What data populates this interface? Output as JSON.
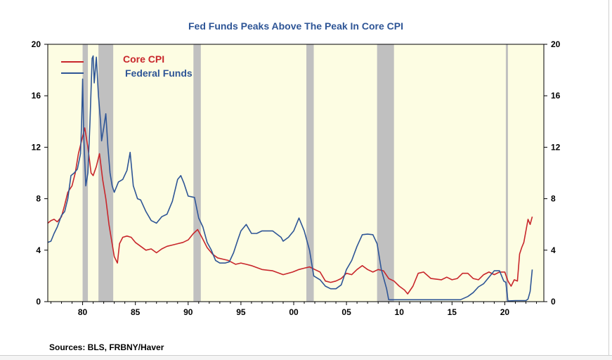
{
  "chart_data": {
    "type": "line",
    "title": "Fed Funds Peaks Above The Peak In Core CPI",
    "x_ticks": [
      "80",
      "85",
      "90",
      "95",
      "00",
      "05",
      "10",
      "15",
      "20"
    ],
    "y_ticks": [
      "0",
      "4",
      "8",
      "12",
      "16",
      "20"
    ],
    "ylim": [
      0,
      20
    ],
    "xlim": [
      1976.7,
      2023.7
    ],
    "grid": false,
    "legend_position": "top-left",
    "background_color": "#fdfde3",
    "recession_shading_color": "#c0c0c0",
    "recessions": [
      [
        1980.0,
        1980.5
      ],
      [
        1981.5,
        1982.9
      ],
      [
        1990.5,
        1991.2
      ],
      [
        2001.2,
        2001.9
      ],
      [
        2007.9,
        2009.5
      ],
      [
        2020.1,
        2020.3
      ]
    ],
    "series": [
      {
        "name": "Core CPI",
        "color": "#c8262b",
        "x": [
          1976.7,
          1977.0,
          1977.3,
          1977.6,
          1978.0,
          1978.3,
          1978.6,
          1979.0,
          1979.3,
          1979.6,
          1979.9,
          1980.2,
          1980.5,
          1980.8,
          1981.0,
          1981.3,
          1981.6,
          1981.9,
          1982.2,
          1982.5,
          1982.8,
          1983.0,
          1983.3,
          1983.5,
          1983.8,
          1984.2,
          1984.6,
          1985.0,
          1985.5,
          1986.0,
          1986.5,
          1987.0,
          1987.5,
          1988.0,
          1988.5,
          1989.0,
          1989.5,
          1990.0,
          1990.5,
          1990.9,
          1991.3,
          1991.8,
          1992.3,
          1992.8,
          1993.3,
          1993.8,
          1994.5,
          1995.0,
          1995.5,
          1996.0,
          1997.0,
          1998.0,
          1999.0,
          1999.9,
          2000.5,
          2001.0,
          2001.5,
          2002.0,
          2002.5,
          2003.0,
          2003.5,
          2004.0,
          2004.5,
          2005.0,
          2005.5,
          2006.0,
          2006.5,
          2007.0,
          2007.5,
          2008.0,
          2008.5,
          2009.0,
          2009.5,
          2010.0,
          2010.5,
          2010.8,
          2011.3,
          2011.8,
          2012.3,
          2013.0,
          2014.0,
          2014.5,
          2015.0,
          2015.5,
          2016.0,
          2016.5,
          2017.0,
          2017.5,
          2018.0,
          2018.5,
          2019.0,
          2019.5,
          2020.0,
          2020.3,
          2020.6,
          2020.9,
          2021.2,
          2021.4,
          2021.6,
          2021.8,
          2022.0,
          2022.2,
          2022.4,
          2022.6
        ],
        "values": [
          6.1,
          6.3,
          6.4,
          6.2,
          6.6,
          7.5,
          8.5,
          9.0,
          10.0,
          11.5,
          12.5,
          13.5,
          12.0,
          10.0,
          9.8,
          10.5,
          11.5,
          9.5,
          8.0,
          6.0,
          4.5,
          3.5,
          3.0,
          4.5,
          5.0,
          5.1,
          5.0,
          4.6,
          4.3,
          4.0,
          4.1,
          3.8,
          4.1,
          4.3,
          4.4,
          4.5,
          4.6,
          4.8,
          5.3,
          5.6,
          5.0,
          4.2,
          3.7,
          3.4,
          3.3,
          3.2,
          2.9,
          3.0,
          2.9,
          2.8,
          2.5,
          2.4,
          2.1,
          2.3,
          2.5,
          2.6,
          2.7,
          2.5,
          2.3,
          1.6,
          1.5,
          1.6,
          1.8,
          2.2,
          2.1,
          2.5,
          2.8,
          2.5,
          2.3,
          2.5,
          2.4,
          1.8,
          1.6,
          1.2,
          0.9,
          0.6,
          1.2,
          2.2,
          2.3,
          1.8,
          1.7,
          1.9,
          1.7,
          1.8,
          2.2,
          2.2,
          1.8,
          1.7,
          2.1,
          2.3,
          2.1,
          2.3,
          2.3,
          1.6,
          1.2,
          1.7,
          1.6,
          3.7,
          4.2,
          4.6,
          5.5,
          6.4,
          6.0,
          6.6
        ]
      },
      {
        "name": "Federal Funds",
        "color": "#2e5596",
        "x": [
          1976.7,
          1977.0,
          1977.3,
          1977.6,
          1978.0,
          1978.3,
          1978.6,
          1978.9,
          1979.2,
          1979.5,
          1979.8,
          1979.9,
          1980.0,
          1980.1,
          1980.3,
          1980.5,
          1980.7,
          1980.9,
          1981.0,
          1981.1,
          1981.3,
          1981.5,
          1981.7,
          1981.8,
          1982.0,
          1982.2,
          1982.4,
          1982.6,
          1982.8,
          1983.0,
          1983.4,
          1983.8,
          1984.2,
          1984.5,
          1984.8,
          1985.2,
          1985.5,
          1986.0,
          1986.5,
          1987.0,
          1987.5,
          1988.0,
          1988.5,
          1989.0,
          1989.3,
          1989.6,
          1990.0,
          1990.6,
          1991.0,
          1991.4,
          1991.8,
          1992.2,
          1992.6,
          1993.0,
          1993.5,
          1993.9,
          1994.3,
          1994.7,
          1995.0,
          1995.5,
          1996.0,
          1996.5,
          1997.0,
          1998.0,
          1998.8,
          1999.0,
          1999.5,
          2000.0,
          2000.5,
          2001.0,
          2001.5,
          2001.9,
          2002.5,
          2003.0,
          2003.5,
          2004.0,
          2004.5,
          2005.0,
          2005.5,
          2006.0,
          2006.5,
          2007.0,
          2007.5,
          2007.9,
          2008.3,
          2008.8,
          2009.0,
          2010.0,
          2012.0,
          2015.8,
          2016.5,
          2017.0,
          2017.5,
          2018.0,
          2018.5,
          2019.0,
          2019.5,
          2019.9,
          2020.1,
          2020.3,
          2021.0,
          2021.8,
          2022.0,
          2022.2,
          2022.4,
          2022.6
        ],
        "values": [
          4.6,
          4.7,
          5.3,
          5.8,
          6.7,
          7.0,
          8.0,
          9.8,
          10.0,
          10.3,
          11.5,
          13.8,
          17.3,
          13.0,
          9.0,
          10.0,
          14.0,
          18.9,
          19.1,
          17.0,
          19.0,
          16.0,
          14.0,
          12.5,
          13.5,
          14.6,
          12.0,
          10.0,
          9.0,
          8.5,
          9.3,
          9.5,
          10.2,
          11.6,
          9.0,
          8.0,
          7.9,
          7.0,
          6.3,
          6.1,
          6.6,
          6.8,
          7.8,
          9.5,
          9.8,
          9.2,
          8.2,
          8.1,
          6.5,
          5.8,
          4.6,
          4.0,
          3.2,
          3.0,
          3.0,
          3.1,
          3.8,
          4.8,
          5.5,
          6.0,
          5.3,
          5.3,
          5.5,
          5.5,
          5.0,
          4.7,
          5.0,
          5.5,
          6.5,
          5.5,
          4.0,
          2.0,
          1.7,
          1.2,
          1.0,
          1.0,
          1.3,
          2.5,
          3.2,
          4.3,
          5.2,
          5.25,
          5.2,
          4.5,
          2.5,
          1.0,
          0.15,
          0.15,
          0.15,
          0.15,
          0.4,
          0.7,
          1.15,
          1.4,
          1.9,
          2.4,
          2.4,
          1.6,
          1.5,
          0.05,
          0.08,
          0.08,
          0.08,
          0.2,
          0.8,
          2.5
        ]
      }
    ]
  },
  "sources": "Sources:  BLS, FRBNY/Haver"
}
